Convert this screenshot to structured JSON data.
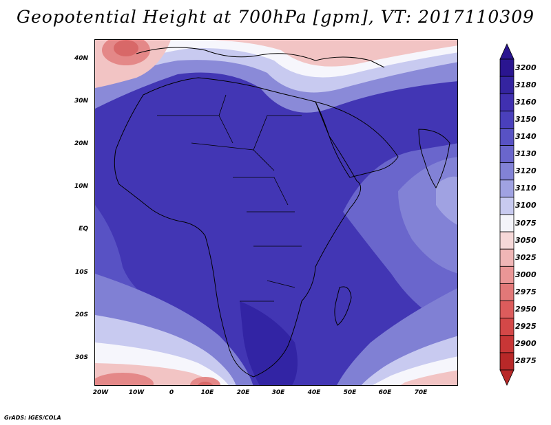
{
  "title": "Geopotential Height at 700hPa [gpm], VT: 2017110309",
  "credit": "GrADS: IGES/COLA",
  "axes": {
    "y_labels": [
      "40N",
      "30N",
      "20N",
      "10N",
      "EQ",
      "10S",
      "20S",
      "30S"
    ],
    "x_labels": [
      "20W",
      "10W",
      "0",
      "10E",
      "20E",
      "30E",
      "40E",
      "50E",
      "60E",
      "70E"
    ]
  },
  "colorbar": {
    "levels": [
      "3200",
      "3180",
      "3160",
      "3150",
      "3140",
      "3130",
      "3120",
      "3110",
      "3100",
      "3075",
      "3050",
      "3025",
      "3000",
      "2975",
      "2950",
      "2925",
      "2900",
      "2875"
    ],
    "colors": [
      "#2a1590",
      "#3424a0",
      "#4030b0",
      "#4a40bc",
      "#5852c4",
      "#6a66cc",
      "#8282d6",
      "#a0a2e2",
      "#c8caf0",
      "#f4f4fa",
      "#f6d8d8",
      "#f0b6b6",
      "#ea9696",
      "#e27878",
      "#dc5c5c",
      "#d44848",
      "#c83636",
      "#b82828"
    ]
  },
  "map_colors": {
    "deep": "#3224a4",
    "main": "#4236b4",
    "mid": "#5a52c2",
    "light": "#8080d4",
    "pale": "#a8aae4",
    "white": "#f6f6fc",
    "pink": "#f2c4c4",
    "red": "#e48888",
    "deepred": "#d86868",
    "coast": "#000000"
  }
}
